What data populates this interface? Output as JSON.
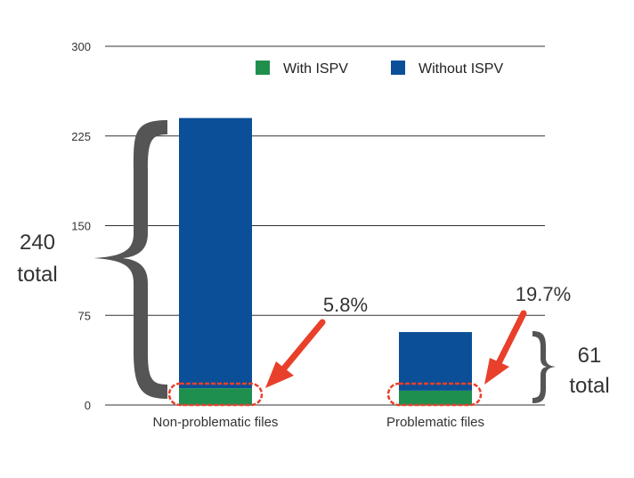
{
  "chart_data": {
    "type": "bar",
    "stacked": true,
    "categories": [
      "Non-problematic files",
      "Problematic files"
    ],
    "series": [
      {
        "name": "With ISPV",
        "values": [
          14,
          12
        ],
        "color": "#1f8f4e"
      },
      {
        "name": "Without ISPV",
        "values": [
          226,
          49
        ],
        "color": "#0a4f97"
      }
    ],
    "yticks": [
      0,
      75,
      150,
      225,
      300
    ],
    "ylim": [
      0,
      300
    ],
    "grid": true,
    "legend": "top-right",
    "annotations": {
      "left_total_number": "240",
      "left_total_word": "total",
      "right_total_number": "61",
      "right_total_word": "total",
      "pct_nonproblematic": "5.8%",
      "pct_problematic": "19.7%"
    }
  }
}
